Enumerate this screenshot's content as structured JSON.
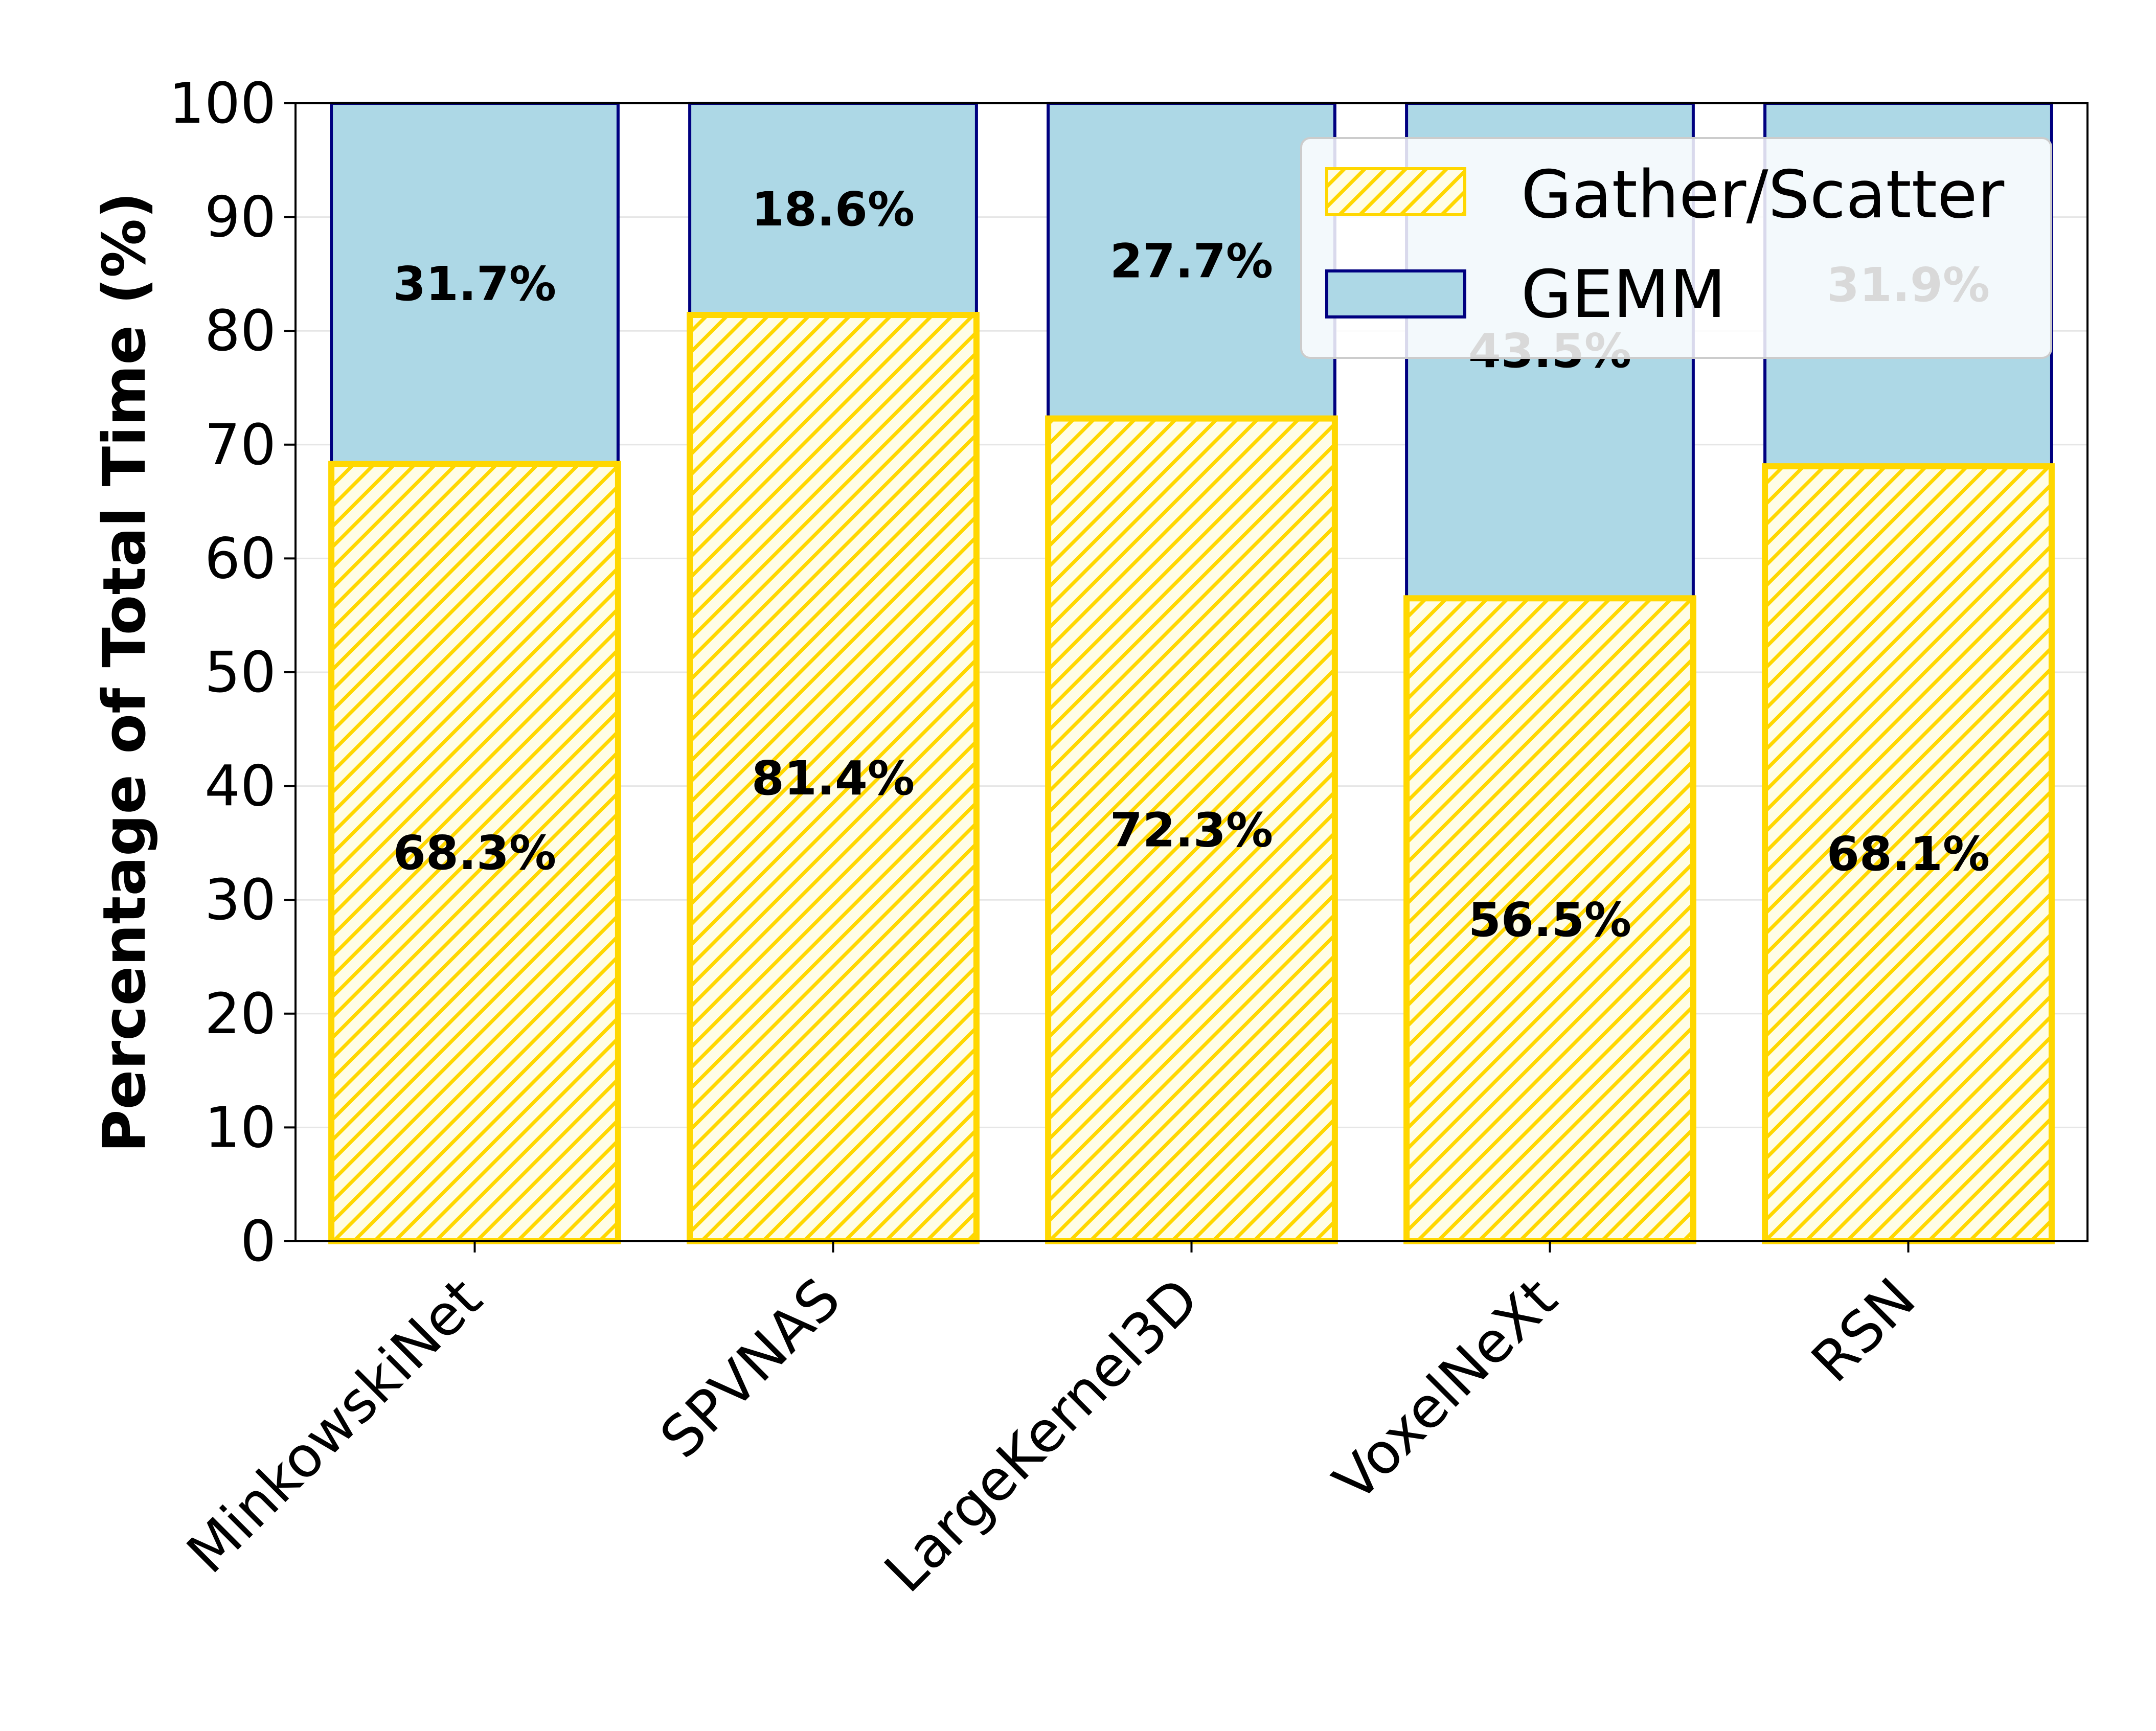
{
  "chart_data": {
    "type": "bar",
    "stacked": true,
    "categories": [
      "MinkowskiNet",
      "SPVNAS",
      "LargeKernel3D",
      "VoxelNeXt",
      "RSN"
    ],
    "series": [
      {
        "name": "Gather/Scatter",
        "values": [
          68.3,
          81.4,
          72.3,
          56.5,
          68.1
        ],
        "labels": [
          "68.3%",
          "81.4%",
          "72.3%",
          "56.5%",
          "68.1%"
        ],
        "fill": "#fffde6",
        "hatch": "#ffd700",
        "edge": "#ffd700"
      },
      {
        "name": "GEMM",
        "values": [
          31.7,
          18.6,
          27.7,
          43.5,
          31.9
        ],
        "labels": [
          "31.7%",
          "18.6%",
          "27.7%",
          "43.5%",
          "31.9%"
        ],
        "fill": "#add8e6",
        "edge": "#000080"
      }
    ],
    "ylabel": "Percentage of Total Time (%)",
    "xlabel": "",
    "ylim": [
      0,
      100
    ],
    "yticks": [
      0,
      10,
      20,
      30,
      40,
      50,
      60,
      70,
      80,
      90,
      100
    ],
    "grid": "horizontal",
    "legend": "top-right",
    "x_tick_rotation": 45
  }
}
